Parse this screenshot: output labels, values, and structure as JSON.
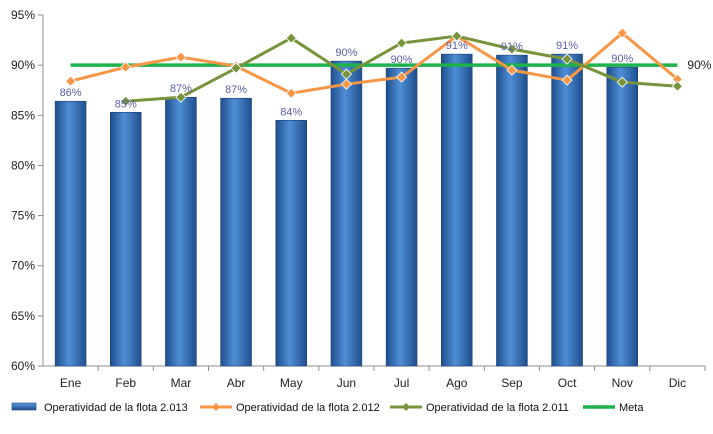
{
  "chart_data": {
    "type": "bar",
    "categories": [
      "Ene",
      "Feb",
      "Mar",
      "Abr",
      "May",
      "Jun",
      "Jul",
      "Ago",
      "Sep",
      "Oct",
      "Nov",
      "Dic"
    ],
    "ylim": [
      0.6,
      0.95
    ],
    "yticks": [
      "60%",
      "65%",
      "70%",
      "75%",
      "80%",
      "85%",
      "90%",
      "95%"
    ],
    "grid": false,
    "legend_position": "bottom",
    "series": [
      {
        "name": "Operatividad de la flota 2.013",
        "kind": "bar",
        "color": "#3a7bc8",
        "values": [
          0.864,
          0.853,
          0.868,
          0.867,
          0.845,
          0.904,
          0.897,
          0.911,
          0.91,
          0.911,
          0.898,
          null
        ],
        "labels": [
          "86%",
          "85%",
          "87%",
          "87%",
          "84%",
          "90%",
          "90%",
          "91%",
          "91%",
          "91%",
          "90%",
          ""
        ]
      },
      {
        "name": "Operatividad de la flota 2.012",
        "kind": "line",
        "color": "#f79646",
        "values": [
          0.884,
          0.898,
          0.908,
          0.899,
          0.872,
          0.881,
          0.888,
          0.929,
          0.895,
          0.885,
          0.932,
          0.886
        ]
      },
      {
        "name": "Operatividad de la flota 2.011",
        "kind": "line",
        "color": "#77933c",
        "values": [
          null,
          0.864,
          0.868,
          0.897,
          0.927,
          0.891,
          0.922,
          0.929,
          0.916,
          0.906,
          0.883,
          0.879
        ]
      },
      {
        "name": "Meta",
        "kind": "hline",
        "color": "#1db24b",
        "value": 0.9,
        "label": "90%"
      }
    ]
  }
}
